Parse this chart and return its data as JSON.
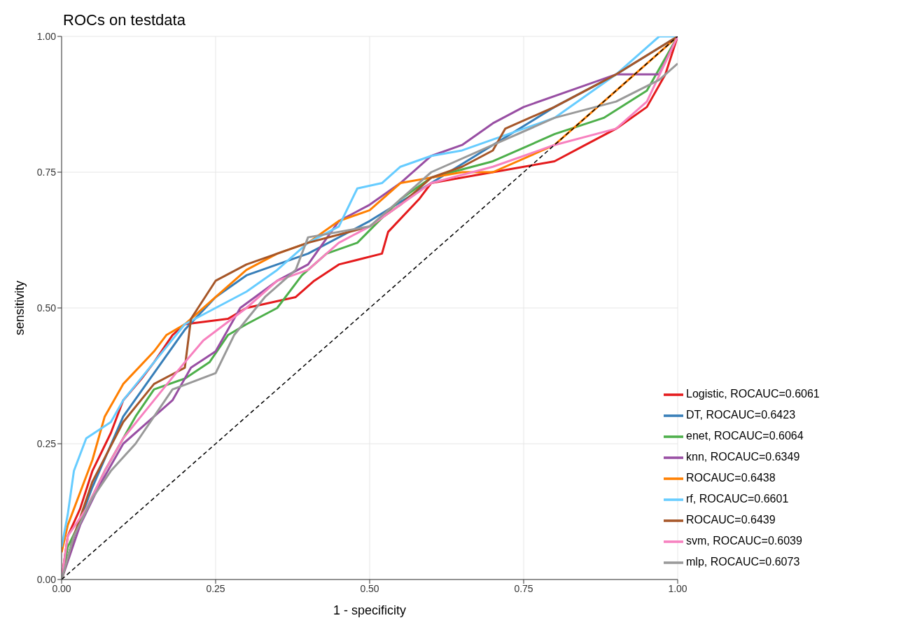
{
  "chart_data": {
    "type": "line",
    "title": "ROCs on testdata",
    "xlabel": "1 - specificity",
    "ylabel": "sensitivity",
    "xlim": [
      0,
      1
    ],
    "ylim": [
      0,
      1
    ],
    "xticks": [
      {
        "value": 0,
        "label": "0.00"
      },
      {
        "value": 0.25,
        "label": "0.25"
      },
      {
        "value": 0.5,
        "label": "0.50"
      },
      {
        "value": 0.75,
        "label": "0.75"
      },
      {
        "value": 1,
        "label": "1.00"
      }
    ],
    "yticks": [
      {
        "value": 0,
        "label": "0.00"
      },
      {
        "value": 0.25,
        "label": "0.25"
      },
      {
        "value": 0.5,
        "label": "0.50"
      },
      {
        "value": 0.75,
        "label": "0.75"
      },
      {
        "value": 1,
        "label": "1.00"
      }
    ],
    "grid": true,
    "legend": "bottom right",
    "marker": "none",
    "line_style": "solid",
    "series": [
      {
        "name": "Logistic, ROCAUC=0.6061",
        "color": "#e41a1c",
        "x": [
          0,
          0.01,
          0.03,
          0.05,
          0.08,
          0.1,
          0.13,
          0.15,
          0.18,
          0.2,
          0.27,
          0.3,
          0.38,
          0.41,
          0.45,
          0.52,
          0.53,
          0.58,
          0.6,
          0.7,
          0.8,
          0.85,
          0.9,
          0.95,
          0.98,
          1
        ],
        "values": [
          0,
          0.08,
          0.13,
          0.2,
          0.27,
          0.33,
          0.37,
          0.4,
          0.45,
          0.47,
          0.48,
          0.5,
          0.52,
          0.55,
          0.58,
          0.6,
          0.64,
          0.7,
          0.73,
          0.75,
          0.77,
          0.8,
          0.83,
          0.87,
          0.93,
          1
        ]
      },
      {
        "name": "DT, ROCAUC=0.6423",
        "color": "#377eb8",
        "x": [
          0,
          0.02,
          0.05,
          0.1,
          0.15,
          0.2,
          0.25,
          0.3,
          0.4,
          0.5,
          0.6,
          0.7,
          0.8,
          0.9,
          1
        ],
        "values": [
          0,
          0.08,
          0.17,
          0.3,
          0.38,
          0.46,
          0.52,
          0.56,
          0.6,
          0.66,
          0.73,
          0.8,
          0.87,
          0.93,
          1
        ]
      },
      {
        "name": "enet, ROCAUC=0.6064",
        "color": "#4daf4a",
        "x": [
          0,
          0.01,
          0.04,
          0.07,
          0.12,
          0.15,
          0.2,
          0.24,
          0.27,
          0.3,
          0.35,
          0.39,
          0.43,
          0.48,
          0.55,
          0.6,
          0.7,
          0.8,
          0.88,
          0.95,
          1
        ],
        "values": [
          0,
          0.06,
          0.13,
          0.2,
          0.3,
          0.35,
          0.37,
          0.4,
          0.45,
          0.47,
          0.5,
          0.56,
          0.6,
          0.62,
          0.7,
          0.74,
          0.77,
          0.82,
          0.85,
          0.9,
          1
        ]
      },
      {
        "name": "knn, ROCAUC=0.6349",
        "color": "#984ea3",
        "x": [
          0,
          0.03,
          0.06,
          0.1,
          0.15,
          0.18,
          0.21,
          0.25,
          0.29,
          0.35,
          0.4,
          0.45,
          0.5,
          0.55,
          0.6,
          0.65,
          0.7,
          0.75,
          0.85,
          0.9,
          0.97,
          1
        ],
        "values": [
          0,
          0.1,
          0.17,
          0.25,
          0.3,
          0.33,
          0.39,
          0.42,
          0.5,
          0.55,
          0.58,
          0.66,
          0.69,
          0.73,
          0.78,
          0.8,
          0.84,
          0.87,
          0.91,
          0.93,
          0.93,
          1
        ]
      },
      {
        "name": "ROCAUC=0.6438",
        "color": "#ff7f00",
        "x": [
          0,
          0.01,
          0.03,
          0.05,
          0.07,
          0.1,
          0.15,
          0.17,
          0.2,
          0.25,
          0.3,
          0.35,
          0.4,
          0.45,
          0.5,
          0.55,
          0.65,
          0.7,
          0.8,
          0.9,
          0.95,
          1
        ],
        "values": [
          0.05,
          0.1,
          0.16,
          0.22,
          0.3,
          0.36,
          0.42,
          0.45,
          0.47,
          0.52,
          0.57,
          0.6,
          0.62,
          0.66,
          0.68,
          0.73,
          0.75,
          0.75,
          0.8,
          0.9,
          0.95,
          1
        ]
      },
      {
        "name": "rf, ROCAUC=0.6601",
        "color": "#66ccff",
        "x": [
          0,
          0.01,
          0.02,
          0.04,
          0.08,
          0.1,
          0.15,
          0.2,
          0.25,
          0.3,
          0.35,
          0.4,
          0.45,
          0.48,
          0.52,
          0.55,
          0.6,
          0.65,
          0.7,
          0.8,
          0.9,
          0.97,
          1
        ],
        "values": [
          0.06,
          0.12,
          0.2,
          0.26,
          0.29,
          0.33,
          0.4,
          0.47,
          0.5,
          0.53,
          0.57,
          0.62,
          0.65,
          0.72,
          0.73,
          0.76,
          0.78,
          0.79,
          0.81,
          0.85,
          0.93,
          1,
          1
        ]
      },
      {
        "name": "ROCAUC=0.6439",
        "color": "#a65628",
        "x": [
          0,
          0.02,
          0.05,
          0.1,
          0.15,
          0.2,
          0.21,
          0.25,
          0.3,
          0.4,
          0.5,
          0.55,
          0.6,
          0.65,
          0.7,
          0.72,
          0.8,
          0.9,
          1
        ],
        "values": [
          0,
          0.08,
          0.18,
          0.29,
          0.36,
          0.39,
          0.48,
          0.55,
          0.58,
          0.62,
          0.65,
          0.69,
          0.74,
          0.76,
          0.79,
          0.83,
          0.87,
          0.93,
          1
        ]
      },
      {
        "name": "svm, ROCAUC=0.6039",
        "color": "#f781bf",
        "x": [
          0,
          0.01,
          0.04,
          0.07,
          0.1,
          0.15,
          0.2,
          0.23,
          0.3,
          0.35,
          0.4,
          0.45,
          0.5,
          0.6,
          0.7,
          0.8,
          0.9,
          0.95,
          1
        ],
        "values": [
          0,
          0.08,
          0.13,
          0.2,
          0.26,
          0.33,
          0.4,
          0.44,
          0.5,
          0.55,
          0.57,
          0.62,
          0.65,
          0.73,
          0.76,
          0.8,
          0.83,
          0.88,
          1
        ]
      },
      {
        "name": "mlp, ROCAUC=0.6073",
        "color": "#999999",
        "x": [
          0,
          0.02,
          0.05,
          0.08,
          0.12,
          0.15,
          0.18,
          0.25,
          0.28,
          0.33,
          0.38,
          0.4,
          0.5,
          0.55,
          0.6,
          0.7,
          0.8,
          0.9,
          0.97,
          1
        ],
        "values": [
          0,
          0.08,
          0.15,
          0.2,
          0.25,
          0.3,
          0.35,
          0.38,
          0.45,
          0.52,
          0.57,
          0.63,
          0.65,
          0.7,
          0.75,
          0.8,
          0.85,
          0.88,
          0.92,
          0.95
        ]
      },
      {
        "color": "#000000",
        "line_style": "dashed",
        "x": [
          0,
          1
        ],
        "values": [
          0,
          1
        ]
      }
    ]
  }
}
